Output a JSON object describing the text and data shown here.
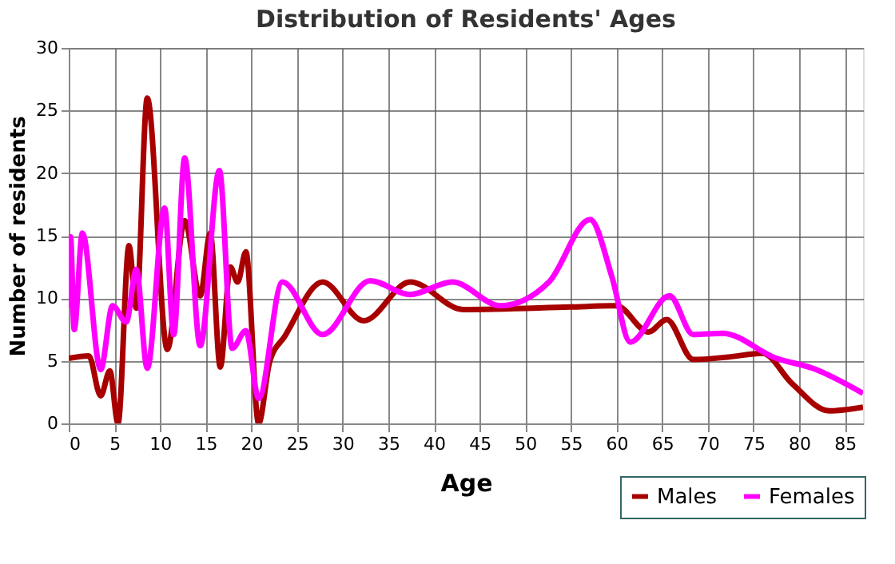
{
  "chart_data": {
    "type": "line",
    "title": "Distribution of Residents' Ages",
    "xlabel": "Age",
    "ylabel": "Number of residents",
    "xlim": [
      0,
      87
    ],
    "xticks": [
      0,
      5,
      10,
      15,
      20,
      25,
      30,
      35,
      40,
      45,
      50,
      55,
      60,
      65,
      70,
      75,
      80,
      85
    ],
    "ylim": [
      0,
      30
    ],
    "yticks": [
      0,
      5,
      10,
      15,
      20,
      25,
      30
    ],
    "grid": true,
    "legend": "bottom right",
    "marker": "none",
    "line_style": "solid",
    "series": [
      {
        "name": "Males",
        "color": "#a80000",
        "x": [
          0,
          2.2,
          3.5,
          4.5,
          5.4,
          6.6,
          7.4,
          8.6,
          10.8,
          12.7,
          14.4,
          15.5,
          16.6,
          17.7,
          18.5,
          19.4,
          20.8,
          22,
          23.7,
          27.8,
          32.3,
          37.4,
          43.2,
          54.9,
          60,
          63.5,
          65.5,
          68.4,
          72.2,
          76,
          79.2,
          83.3,
          87
        ],
        "values": [
          5.2,
          5.4,
          2.2,
          4.2,
          0,
          14.2,
          9.2,
          26,
          5.9,
          16.2,
          10.2,
          15.2,
          4.5,
          12.5,
          11.3,
          13.7,
          0,
          4.9,
          7,
          11.3,
          8.2,
          11.3,
          9.1,
          9.3,
          9.4,
          7.3,
          8.3,
          5.1,
          5.3,
          5.6,
          3.2,
          1.0,
          1.3
        ]
      },
      {
        "name": "Females",
        "color": "#ff00ff",
        "x": [
          0,
          0.2,
          0.6,
          1.5,
          3.5,
          4.8,
          6.3,
          7.4,
          8.6,
          10.5,
          11.5,
          12.7,
          14.4,
          16.5,
          17.9,
          19.4,
          20.8,
          23.4,
          27.8,
          33,
          37.4,
          42,
          47.3,
          52.6,
          57.1,
          59.5,
          61.5,
          65.8,
          68.4,
          71.6,
          77.5,
          81.5,
          87
        ],
        "values": [
          9.2,
          14.9,
          7.5,
          15.2,
          4.3,
          9.4,
          8.1,
          12.3,
          4.4,
          17.2,
          7.1,
          21.2,
          6.2,
          20.2,
          6,
          7.4,
          2,
          11.3,
          7.1,
          11.4,
          10.3,
          11.3,
          9.4,
          11.3,
          16.3,
          11.7,
          6.5,
          10.2,
          7.1,
          7.2,
          5.2,
          4.4,
          2.4
        ]
      }
    ]
  }
}
